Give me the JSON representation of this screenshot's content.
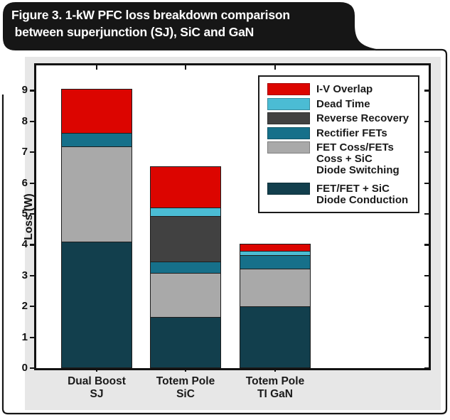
{
  "figure": {
    "title_line1": "Figure 3. 1-kW PFC loss breakdown comparison",
    "title_line2": " between superjunction (SJ), SiC and GaN"
  },
  "colors": {
    "iv_overlap": "#DC0500",
    "dead_time": "#4BBCD4",
    "reverse_recovery": "#414141",
    "rectifier_fets": "#16708A",
    "fet_coss": "#A9A9A9",
    "fet_conduction": "#123F4D",
    "panel_background": "#E7E7E7",
    "banner_black": "#161616",
    "axis_black": "#121212"
  },
  "chart_data": {
    "type": "bar",
    "stacked": true,
    "title": "1-kW PFC loss breakdown comparison between superjunction (SJ), SiC and GaN",
    "xlabel": "",
    "ylabel": "Loss (W)",
    "ylim": [
      0,
      9.85
    ],
    "yticks": [
      0,
      1,
      2,
      3,
      4,
      5,
      6,
      7,
      8,
      9
    ],
    "grid": false,
    "legend_position": "upper right",
    "categories": [
      "Dual Boost\nSJ",
      "Totem Pole\nSiC",
      "Totem Pole\nTI GaN"
    ],
    "series": [
      {
        "name": "FET/FET + SiC Diode Conduction",
        "color": "#123F4D",
        "values": [
          4.1,
          1.65,
          2.0
        ]
      },
      {
        "name": "FET Coss/FETs Coss + SiC Diode Switching",
        "color": "#A9A9A9",
        "values": [
          3.1,
          1.45,
          1.25
        ]
      },
      {
        "name": "Rectifier FETs",
        "color": "#16708A",
        "values": [
          0.45,
          0.4,
          0.45
        ]
      },
      {
        "name": "Reverse Recovery",
        "color": "#414141",
        "values": [
          0,
          1.5,
          0
        ]
      },
      {
        "name": "Dead Time",
        "color": "#4BBCD4",
        "values": [
          0,
          0.3,
          0.15
        ]
      },
      {
        "name": "I-V Overlap",
        "color": "#DC0500",
        "values": [
          1.45,
          1.35,
          0.25
        ]
      }
    ],
    "stack_totals": [
      9.1,
      6.65,
      4.1
    ],
    "legend_entries": [
      {
        "label": "I-V Overlap",
        "color": "#DC0500"
      },
      {
        "label": "Dead Time",
        "color": "#4BBCD4"
      },
      {
        "label": "Reverse Recovery",
        "color": "#414141"
      },
      {
        "label": "Rectifier FETs",
        "color": "#16708A"
      },
      {
        "label": "FET Coss/FETs\nCoss + SiC\nDiode Switching",
        "color": "#A9A9A9"
      },
      {
        "label": "FET/FET + SiC\nDiode Conduction",
        "color": "#123F4D"
      }
    ]
  }
}
